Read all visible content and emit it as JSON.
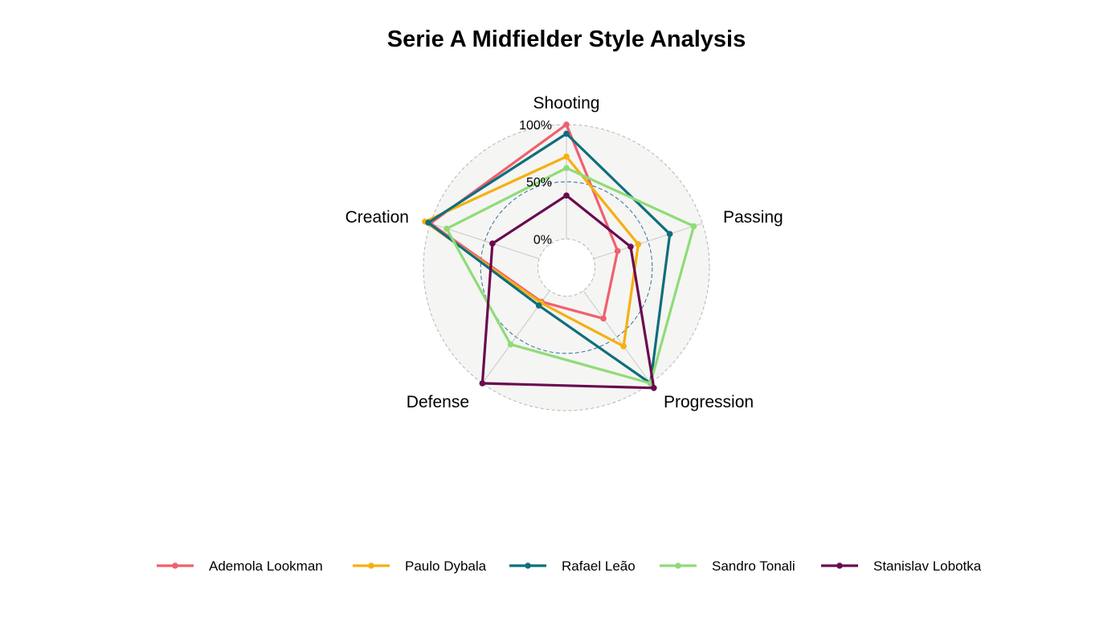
{
  "chart_data": {
    "type": "radar",
    "title": "Serie A Midfielder Style Analysis",
    "axes": [
      "Shooting",
      "Passing",
      "Progression",
      "Defense",
      "Creation"
    ],
    "rlim": [
      0,
      100
    ],
    "ring_labels": [
      "0%",
      "50%",
      "100%"
    ],
    "grid": true,
    "legend_position": "bottom",
    "background_color": "#f5f5f3",
    "series": [
      {
        "name": "Ademola Lookman",
        "color": "#f0606e",
        "values": [
          100,
          22,
          30,
          12,
          100
        ]
      },
      {
        "name": "Paulo Dybala",
        "color": "#f5b010",
        "values": [
          72,
          41,
          60,
          13,
          105
        ]
      },
      {
        "name": "Rafael Leão",
        "color": "#0f6e7d",
        "values": [
          92,
          70,
          100,
          16,
          102
        ]
      },
      {
        "name": "Sandro Tonali",
        "color": "#8fdc78",
        "values": [
          62,
          92,
          100,
          58,
          85
        ]
      },
      {
        "name": "Stanislav Lobotka",
        "color": "#6a0a4f",
        "values": [
          38,
          34,
          105,
          100,
          43
        ]
      }
    ]
  }
}
